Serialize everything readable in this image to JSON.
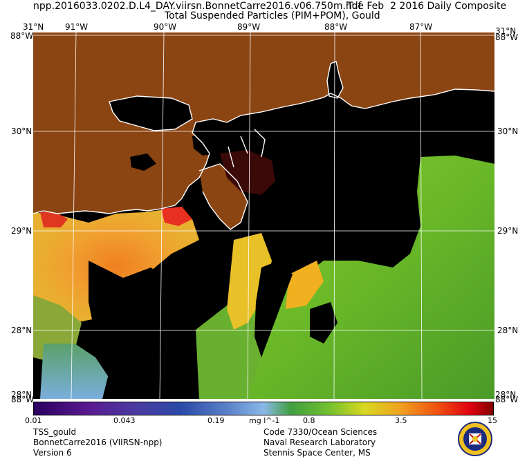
{
  "header": {
    "filename": "npp.2016033.0202.D.L4_DAY.viirsn.BonnetCarre2016.v06.750m.hdf",
    "date": "Tue Feb  2 2016 Daily Composite",
    "product": "Total Suspended Particles (PIM+POM), Gould"
  },
  "axes": {
    "top_lon": [
      "91°W",
      "90°W",
      "89°W",
      "88°W",
      "87°W"
    ],
    "lat_left": [
      "30°N",
      "29°N",
      "28°N"
    ],
    "lat_right": [
      "30°N",
      "29°N",
      "28°N"
    ],
    "corner_tl_top": "31°N",
    "corner_tl_left": "88°W",
    "corner_tr_top": "31°N",
    "corner_tr_right": "88°W",
    "corner_bl_top": "28°N",
    "corner_bl_left": "88°W",
    "corner_br_top": "28°N",
    "corner_br_right": "88°W"
  },
  "colorbar": {
    "ticks": [
      "0.01",
      "0.043",
      "0.19",
      "mg l^-1",
      "0.8",
      "3.5",
      "15"
    ]
  },
  "footer": {
    "left": [
      "TSS_gould",
      "BonnetCarre2016 (VIIRSN-npp)",
      "Version 6"
    ],
    "right": [
      "Code 7330/Ocean Sciences",
      "Naval Research Laboratory",
      "Stennis Space Center, MS"
    ]
  },
  "colors": {
    "land": "#8b4513",
    "no_data": "#000000",
    "coastline": "#ffffff"
  }
}
